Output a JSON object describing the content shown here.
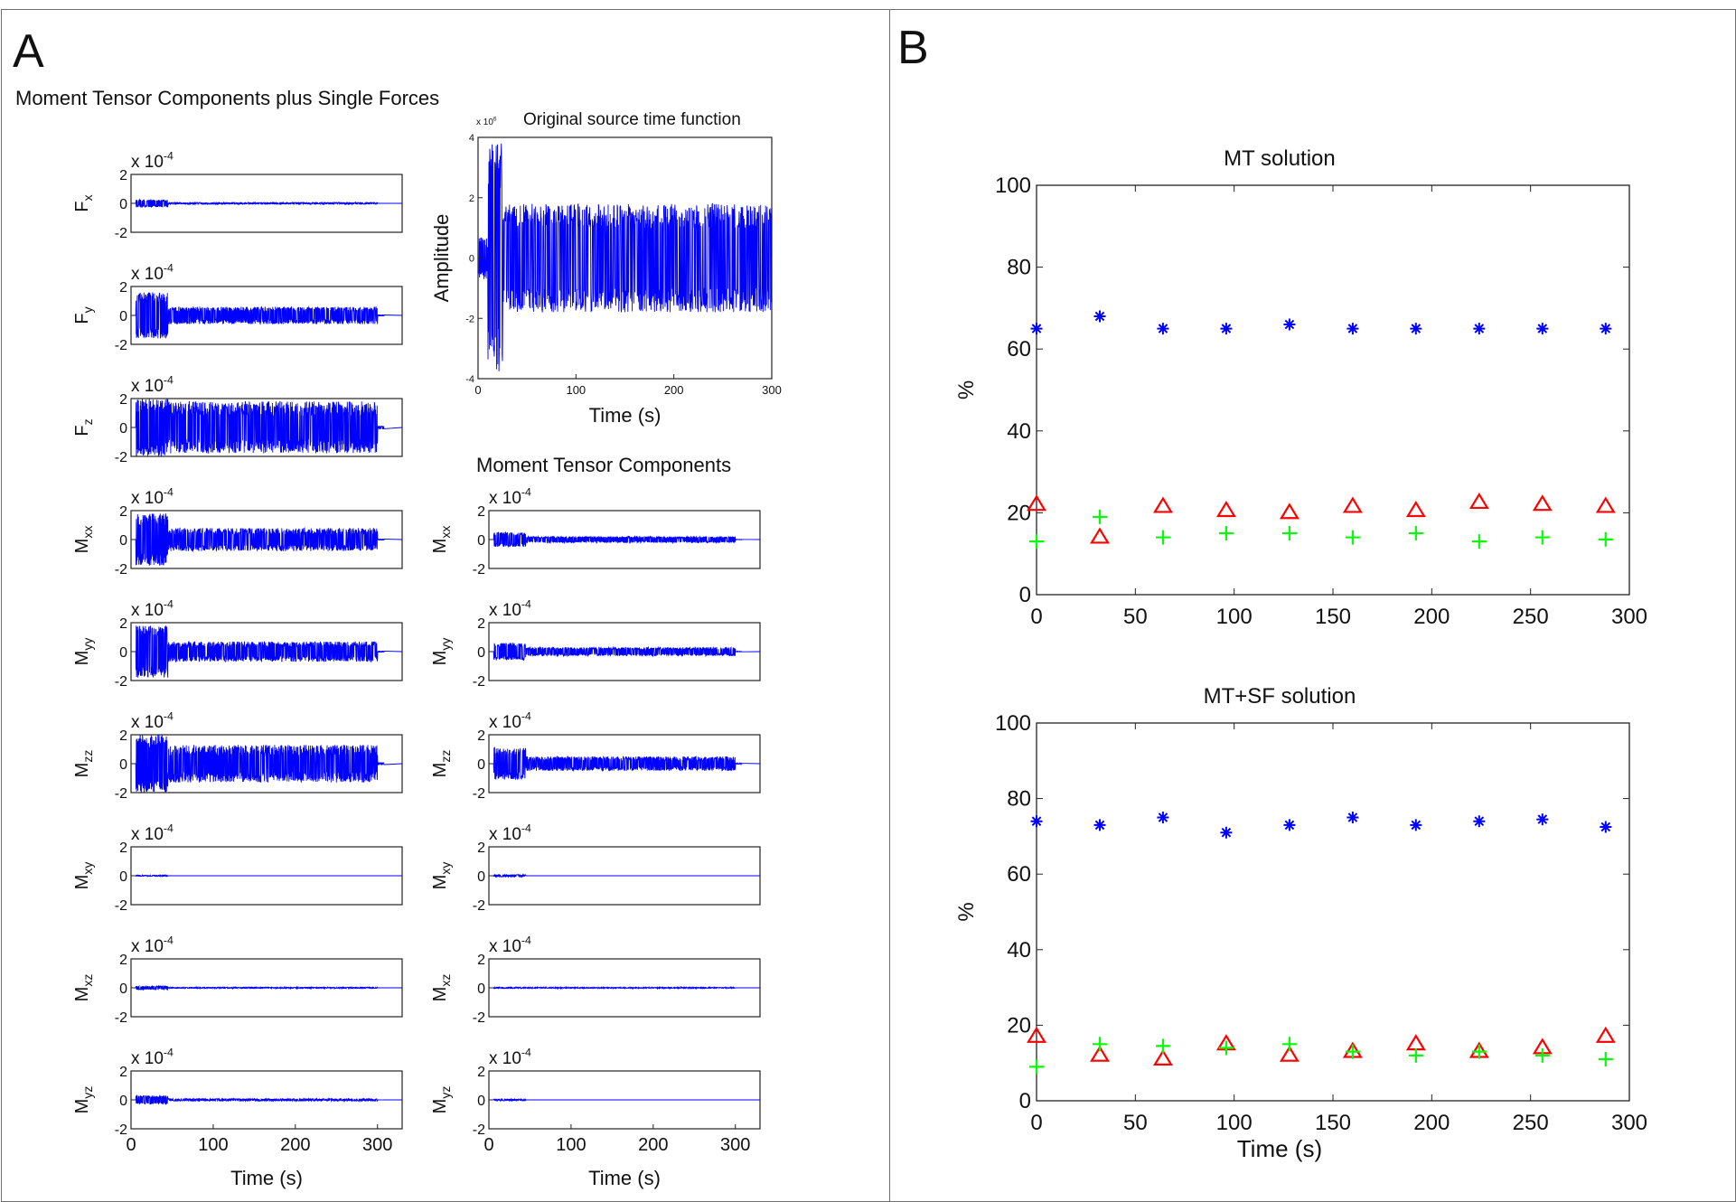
{
  "figure": {
    "panel_a_letter": "A",
    "panel_b_letter": "B",
    "panel_a_title": "Moment Tensor Components plus Single Forces",
    "panel_a_right_title": "Moment Tensor Components"
  },
  "chart_data": [
    {
      "id": "stf",
      "type": "line",
      "title": "Original source time function",
      "ylabel": "Amplitude",
      "xlabel": "Time (s)",
      "exponent": "x 10^6",
      "xlim": [
        0,
        300
      ],
      "ylim": [
        -4,
        4
      ],
      "xticks": [
        0,
        100,
        200,
        300
      ],
      "yticks": [
        -4,
        -2,
        0,
        2,
        4
      ],
      "series": [
        {
          "color": "#0000ff",
          "envelope": {
            "onset_s": 25,
            "onset_peak": 3.8,
            "sustained": 1.8,
            "end_s": 300
          }
        }
      ]
    },
    {
      "id": "fx",
      "type": "line",
      "ylabel_main": "F",
      "ylabel_sub": "x",
      "exponent": "x 10^-4",
      "xlim": [
        0,
        330
      ],
      "ylim": [
        -2,
        2
      ],
      "yticks": [
        2,
        0,
        -2
      ],
      "xticks": [],
      "series": [
        {
          "color": "#0000ff",
          "envelope": {
            "onset_peak": 0.25,
            "sustained": 0.06,
            "end_s": 300
          }
        }
      ]
    },
    {
      "id": "fy",
      "type": "line",
      "ylabel_main": "F",
      "ylabel_sub": "y",
      "exponent": "x 10^-4",
      "xlim": [
        0,
        330
      ],
      "ylim": [
        -2,
        2
      ],
      "yticks": [
        2,
        0,
        -2
      ],
      "xticks": [],
      "series": [
        {
          "color": "#0000ff",
          "envelope": {
            "onset_peak": 1.6,
            "sustained": 0.6,
            "end_s": 300
          }
        }
      ]
    },
    {
      "id": "fz",
      "type": "line",
      "ylabel_main": "F",
      "ylabel_sub": "z",
      "exponent": "x 10^-4",
      "xlim": [
        0,
        330
      ],
      "ylim": [
        -2,
        2
      ],
      "yticks": [
        2,
        0,
        -2
      ],
      "xticks": [],
      "series": [
        {
          "color": "#0000ff",
          "envelope": {
            "onset_peak": 2.0,
            "sustained": 1.8,
            "end_s": 300
          }
        }
      ]
    },
    {
      "id": "mxx_sf",
      "type": "line",
      "ylabel_main": "M",
      "ylabel_sub": "xx",
      "exponent": "x 10^-4",
      "xlim": [
        0,
        330
      ],
      "ylim": [
        -2,
        2
      ],
      "yticks": [
        2,
        0,
        -2
      ],
      "xticks": [],
      "series": [
        {
          "color": "#0000ff",
          "envelope": {
            "onset_peak": 1.8,
            "sustained": 0.8,
            "end_s": 300
          }
        }
      ]
    },
    {
      "id": "myy_sf",
      "type": "line",
      "ylabel_main": "M",
      "ylabel_sub": "yy",
      "exponent": "x 10^-4",
      "xlim": [
        0,
        330
      ],
      "ylim": [
        -2,
        2
      ],
      "yticks": [
        2,
        0,
        -2
      ],
      "xticks": [],
      "series": [
        {
          "color": "#0000ff",
          "envelope": {
            "onset_peak": 1.8,
            "sustained": 0.7,
            "end_s": 300
          }
        }
      ]
    },
    {
      "id": "mzz_sf",
      "type": "line",
      "ylabel_main": "M",
      "ylabel_sub": "zz",
      "exponent": "x 10^-4",
      "xlim": [
        0,
        330
      ],
      "ylim": [
        -2,
        2
      ],
      "yticks": [
        2,
        0,
        -2
      ],
      "xticks": [],
      "series": [
        {
          "color": "#0000ff",
          "envelope": {
            "onset_peak": 2.0,
            "sustained": 1.3,
            "end_s": 300
          }
        }
      ]
    },
    {
      "id": "mxy_sf",
      "type": "line",
      "ylabel_main": "M",
      "ylabel_sub": "xy",
      "exponent": "x 10^-4",
      "xlim": [
        0,
        330
      ],
      "ylim": [
        -2,
        2
      ],
      "yticks": [
        2,
        0,
        -2
      ],
      "xticks": [],
      "series": [
        {
          "color": "#0000ff",
          "envelope": {
            "onset_peak": 0.04,
            "sustained": 0.0,
            "end_s": 300
          }
        }
      ]
    },
    {
      "id": "mxz_sf",
      "type": "line",
      "ylabel_main": "M",
      "ylabel_sub": "xz",
      "exponent": "x 10^-4",
      "xlim": [
        0,
        330
      ],
      "ylim": [
        -2,
        2
      ],
      "yticks": [
        2,
        0,
        -2
      ],
      "xticks": [],
      "series": [
        {
          "color": "#0000ff",
          "envelope": {
            "onset_peak": 0.12,
            "sustained": 0.04,
            "end_s": 300
          }
        }
      ]
    },
    {
      "id": "myz_sf",
      "type": "line",
      "ylabel_main": "M",
      "ylabel_sub": "yz",
      "exponent": "x 10^-4",
      "xlim": [
        0,
        330
      ],
      "ylim": [
        -2,
        2
      ],
      "yticks": [
        2,
        0,
        -2
      ],
      "xticks": [
        0,
        100,
        200,
        300
      ],
      "xlabel": "Time (s)",
      "series": [
        {
          "color": "#0000ff",
          "envelope": {
            "onset_peak": 0.3,
            "sustained": 0.08,
            "end_s": 300
          }
        }
      ]
    },
    {
      "id": "mxx_mt",
      "type": "line",
      "ylabel_main": "M",
      "ylabel_sub": "xx",
      "exponent": "x 10^-4",
      "xlim": [
        0,
        330
      ],
      "ylim": [
        -2,
        2
      ],
      "yticks": [
        2,
        0,
        -2
      ],
      "xticks": [],
      "series": [
        {
          "color": "#0000ff",
          "envelope": {
            "onset_peak": 0.5,
            "sustained": 0.22,
            "end_s": 300
          }
        }
      ]
    },
    {
      "id": "myy_mt",
      "type": "line",
      "ylabel_main": "M",
      "ylabel_sub": "yy",
      "exponent": "x 10^-4",
      "xlim": [
        0,
        330
      ],
      "ylim": [
        -2,
        2
      ],
      "yticks": [
        2,
        0,
        -2
      ],
      "xticks": [],
      "series": [
        {
          "color": "#0000ff",
          "envelope": {
            "onset_peak": 0.6,
            "sustained": 0.3,
            "end_s": 300
          }
        }
      ]
    },
    {
      "id": "mzz_mt",
      "type": "line",
      "ylabel_main": "M",
      "ylabel_sub": "zz",
      "exponent": "x 10^-4",
      "xlim": [
        0,
        330
      ],
      "ylim": [
        -2,
        2
      ],
      "yticks": [
        2,
        0,
        -2
      ],
      "xticks": [],
      "series": [
        {
          "color": "#0000ff",
          "envelope": {
            "onset_peak": 1.1,
            "sustained": 0.5,
            "end_s": 300
          }
        }
      ]
    },
    {
      "id": "mxy_mt",
      "type": "line",
      "ylabel_main": "M",
      "ylabel_sub": "xy",
      "exponent": "x 10^-4",
      "xlim": [
        0,
        330
      ],
      "ylim": [
        -2,
        2
      ],
      "yticks": [
        2,
        0,
        -2
      ],
      "xticks": [],
      "series": [
        {
          "color": "#0000ff",
          "envelope": {
            "onset_peak": 0.08,
            "sustained": 0.0,
            "end_s": 300
          }
        }
      ]
    },
    {
      "id": "mxz_mt",
      "type": "line",
      "ylabel_main": "M",
      "ylabel_sub": "xz",
      "exponent": "x 10^-4",
      "xlim": [
        0,
        330
      ],
      "ylim": [
        -2,
        2
      ],
      "yticks": [
        2,
        0,
        -2
      ],
      "xticks": [],
      "series": [
        {
          "color": "#0000ff",
          "envelope": {
            "onset_peak": 0.05,
            "sustained": 0.03,
            "end_s": 300
          }
        }
      ]
    },
    {
      "id": "myz_mt",
      "type": "line",
      "ylabel_main": "M",
      "ylabel_sub": "yz",
      "exponent": "x 10^-4",
      "xlim": [
        0,
        330
      ],
      "ylim": [
        -2,
        2
      ],
      "yticks": [
        2,
        0,
        -2
      ],
      "xticks": [
        0,
        100,
        200,
        300
      ],
      "xlabel": "Time (s)",
      "series": [
        {
          "color": "#0000ff",
          "envelope": {
            "onset_peak": 0.06,
            "sustained": 0.0,
            "end_s": 300
          }
        }
      ]
    },
    {
      "id": "mt_solution",
      "type": "scatter",
      "title": "MT solution",
      "ylabel": "%",
      "xlabel": "",
      "xlim": [
        0,
        300
      ],
      "ylim": [
        0,
        100
      ],
      "xticks": [
        0,
        50,
        100,
        150,
        200,
        250,
        300
      ],
      "yticks": [
        0,
        20,
        40,
        60,
        80,
        100
      ],
      "x": [
        0,
        32,
        64,
        96,
        128,
        160,
        192,
        224,
        256,
        288
      ],
      "series": [
        {
          "marker": "star",
          "color": "#0000ff",
          "values": [
            65,
            68,
            65,
            65,
            66,
            65,
            65,
            65,
            65,
            65
          ]
        },
        {
          "marker": "triangle",
          "color": "#ff0000",
          "values": [
            22,
            14,
            21.5,
            20.5,
            20,
            21.5,
            20.5,
            22.5,
            22,
            21.5
          ]
        },
        {
          "marker": "plus",
          "color": "#00ff00",
          "values": [
            13,
            19,
            14,
            15,
            15,
            14,
            15,
            13,
            14,
            13.5
          ]
        }
      ]
    },
    {
      "id": "mtsf_solution",
      "type": "scatter",
      "title": "MT+SF solution",
      "ylabel": "%",
      "xlabel": "Time (s)",
      "xlim": [
        0,
        300
      ],
      "ylim": [
        0,
        100
      ],
      "xticks": [
        0,
        50,
        100,
        150,
        200,
        250,
        300
      ],
      "yticks": [
        0,
        20,
        40,
        60,
        80,
        100
      ],
      "x": [
        0,
        32,
        64,
        96,
        128,
        160,
        192,
        224,
        256,
        288
      ],
      "series": [
        {
          "marker": "star",
          "color": "#0000ff",
          "values": [
            74,
            73,
            75,
            71,
            73,
            75,
            73,
            74,
            74.5,
            72.5
          ]
        },
        {
          "marker": "triangle",
          "color": "#ff0000",
          "values": [
            17,
            12,
            11,
            15,
            12,
            13,
            15,
            13,
            14,
            17
          ]
        },
        {
          "marker": "plus",
          "color": "#00ff00",
          "values": [
            9,
            15,
            14.5,
            14,
            15,
            13,
            12,
            13,
            12,
            11
          ]
        }
      ]
    }
  ]
}
